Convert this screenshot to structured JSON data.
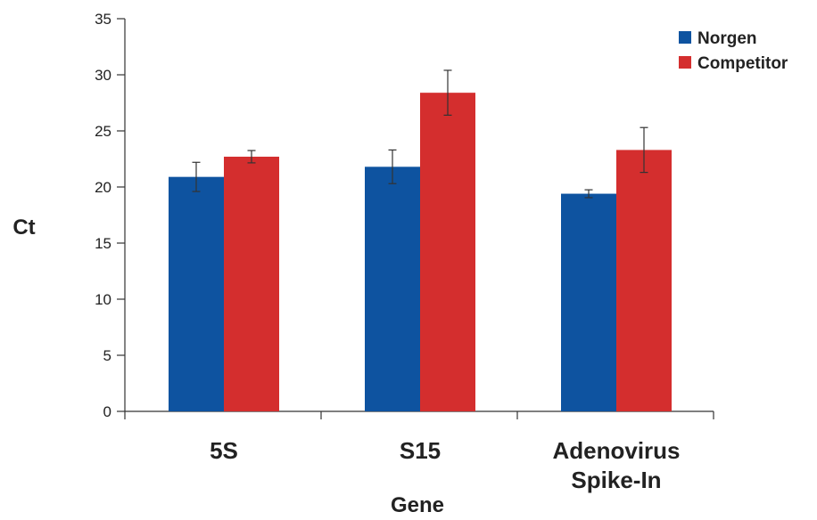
{
  "chart_data": {
    "type": "bar",
    "title": "",
    "xlabel": "Gene",
    "ylabel": "Ct",
    "ylim": [
      0,
      35
    ],
    "yticks": [
      0,
      5,
      10,
      15,
      20,
      25,
      30,
      35
    ],
    "grid": false,
    "legend_position": "top-right",
    "categories": [
      [
        "5S"
      ],
      [
        "S15"
      ],
      [
        "Adenovirus",
        "Spike-In"
      ]
    ],
    "series": [
      {
        "name": "Norgen",
        "color": "#0e53a0",
        "values": [
          20.9,
          21.8,
          19.4
        ],
        "errors": [
          1.3,
          1.5,
          0.35
        ]
      },
      {
        "name": "Competitor",
        "color": "#d42e2e",
        "values": [
          22.7,
          28.4,
          23.3
        ],
        "errors": [
          0.55,
          2.0,
          2.0
        ]
      }
    ]
  }
}
